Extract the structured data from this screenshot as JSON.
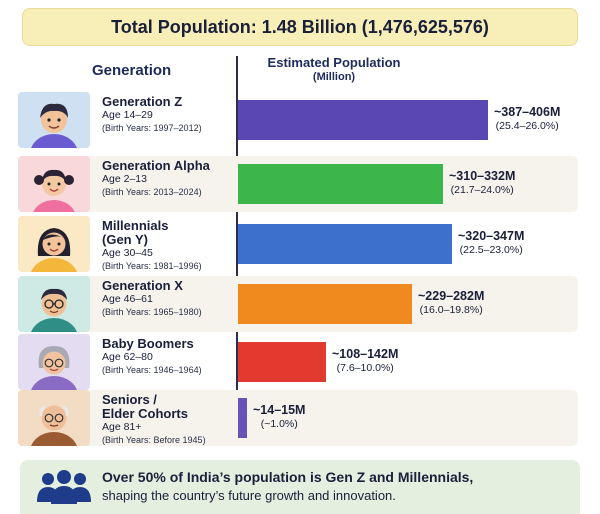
{
  "title": "Total Population: 1.48 Billion (1,476,625,576)",
  "header": {
    "generation": "Generation",
    "estimated": "Estimated Population",
    "unit": "(Million)"
  },
  "rows": [
    {
      "name": "Generation Z",
      "age": "Age 14–29",
      "birth": "(Birth Years: 1997–2012)",
      "range": "~387–406M",
      "pct": "(25.4–26.0%)",
      "avatar": "gen-z-boy-avatar"
    },
    {
      "name": "Generation Alpha",
      "age": "Age 2–13",
      "birth": "(Birth Years: 2013–2024)",
      "range": "~310–332M",
      "pct": "(21.7–24.0%)",
      "avatar": "gen-alpha-girl-avatar"
    },
    {
      "name": "Millennials\n(Gen Y)",
      "name1": "Millennials",
      "name2": "(Gen Y)",
      "age": "Age 30–45",
      "birth": "(Birth Years: 1981–1996)",
      "range": "~320–347M",
      "pct": "(22.5–23.0%)",
      "avatar": "millennial-woman-avatar"
    },
    {
      "name": "Generation X",
      "age": "Age 46–61",
      "birth": "(Birth Years: 1965–1980)",
      "range": "~229–282M",
      "pct": "(16.0–19.8%)",
      "avatar": "gen-x-man-avatar"
    },
    {
      "name": "Baby Boomers",
      "age": "Age 62–80",
      "birth": "(Birth Years: 1946–1964)",
      "range": "~108–142M",
      "pct": "(7.6–10.0%)",
      "avatar": "boomer-woman-avatar"
    },
    {
      "name1": "Seniors /",
      "name2": "Elder Cohorts",
      "age": "Age 81+",
      "birth": "(Birth Years: Before 1945)",
      "range": "~14–15M",
      "pct": "(~1.0%)",
      "avatar": "senior-man-avatar"
    }
  ],
  "footer": {
    "line1": "Over 50% of India’s population is Gen Z and Millennials,",
    "line2": "shaping the country’s future growth and innovation.",
    "icon": "people-group-icon"
  },
  "colors": {
    "gen_z": "#5a47b4",
    "gen_alpha": "#3cb54a",
    "millennials": "#3d70cc",
    "gen_x": "#f08a1e",
    "boomers": "#e23a2e",
    "seniors": "#6852b5"
  },
  "chart_data": {
    "type": "bar",
    "orientation": "horizontal",
    "categories": [
      "Generation Z",
      "Generation Alpha",
      "Millennials (Gen Y)",
      "Generation X",
      "Baby Boomers",
      "Seniors / Elder Cohorts"
    ],
    "values": [
      406,
      332,
      347,
      282,
      142,
      15
    ],
    "ranges": [
      [
        387,
        406
      ],
      [
        310,
        332
      ],
      [
        320,
        347
      ],
      [
        229,
        282
      ],
      [
        108,
        142
      ],
      [
        14,
        15
      ]
    ],
    "xlim": [
      0,
      425
    ],
    "title": "Total Population: 1.48 Billion (1,476,625,576)",
    "xlabel": "Estimated Population (Million)"
  }
}
